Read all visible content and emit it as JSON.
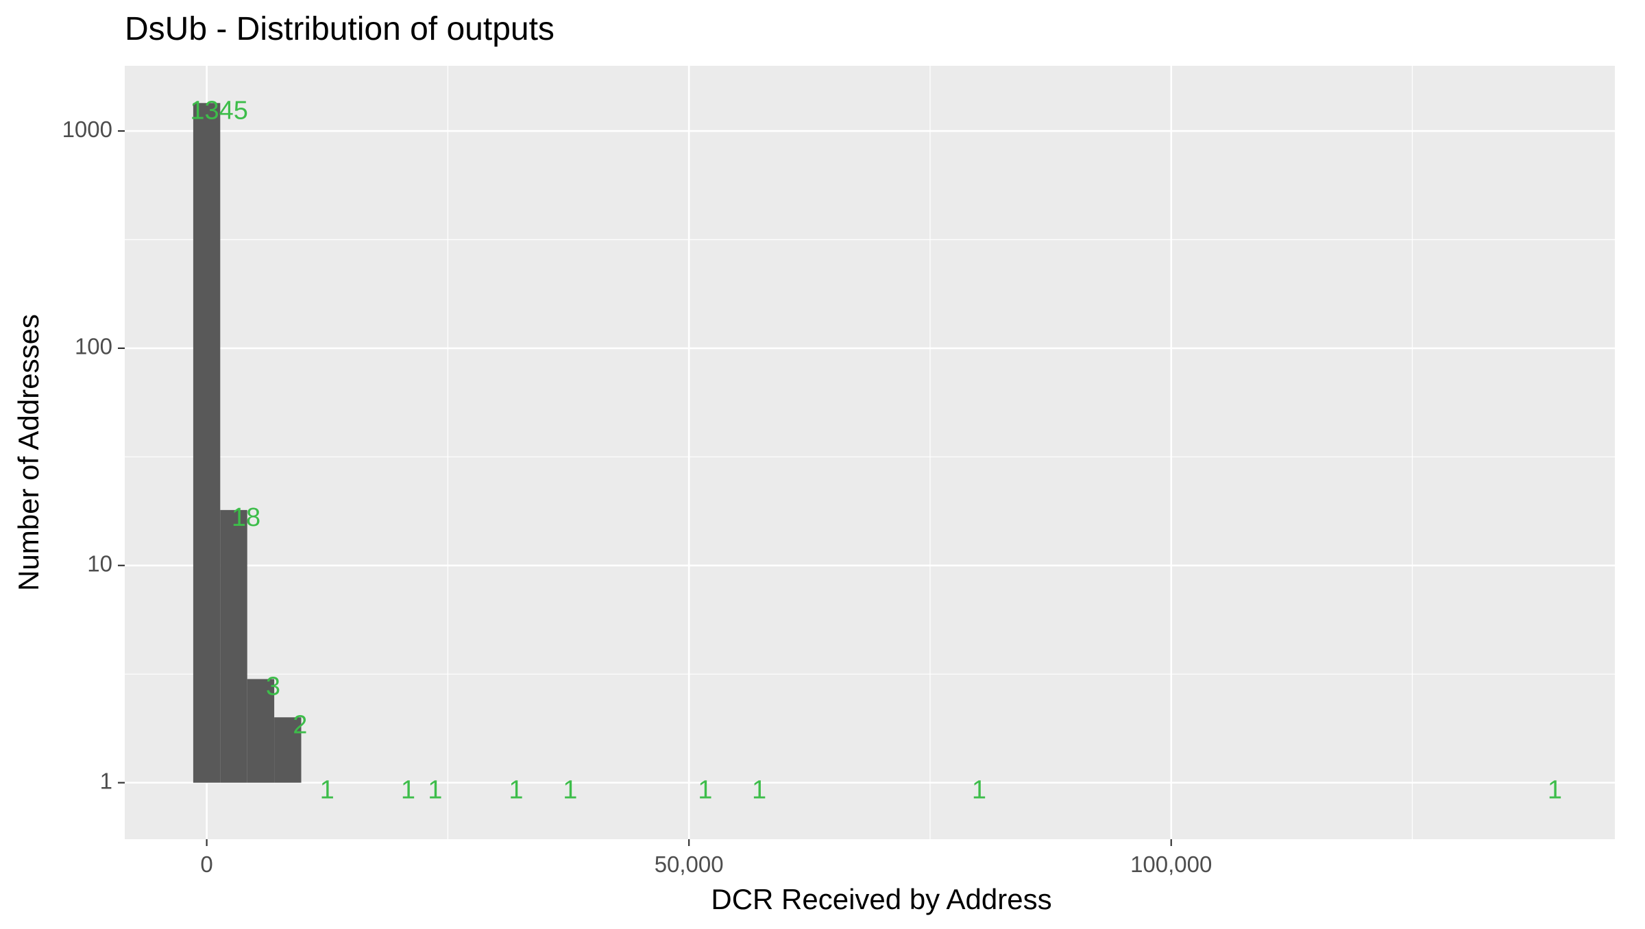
{
  "chart_data": {
    "type": "bar",
    "title": "DsUb - Distribution of outputs",
    "xlabel": "DCR Received by Address",
    "ylabel": "Number of Addresses",
    "y_scale": "log10",
    "x_range": [
      -8500,
      146000
    ],
    "y_range_log10": [
      -0.26,
      3.3
    ],
    "bin_width": 2800,
    "x_ticks": [
      {
        "value": 0,
        "label": "0"
      },
      {
        "value": 50000,
        "label": "50,000"
      },
      {
        "value": 100000,
        "label": "100,000"
      }
    ],
    "x_minor_ticks": [
      25000,
      75000,
      125000
    ],
    "y_ticks": [
      {
        "value": 1,
        "label": "1"
      },
      {
        "value": 10,
        "label": "10"
      },
      {
        "value": 100,
        "label": "100"
      },
      {
        "value": 1000,
        "label": "1000"
      }
    ],
    "y_minor_ticks": [
      3.1623,
      31.623,
      316.23
    ],
    "grid": true,
    "bars": [
      {
        "x": 0,
        "count": 1345,
        "label": "1345"
      },
      {
        "x": 2800,
        "count": 18,
        "label": "18"
      },
      {
        "x": 5600,
        "count": 3,
        "label": "3"
      },
      {
        "x": 8400,
        "count": 2,
        "label": "2"
      },
      {
        "x": 11200,
        "count": 1,
        "label": "1"
      },
      {
        "x": 19600,
        "count": 1,
        "label": "1"
      },
      {
        "x": 22400,
        "count": 1,
        "label": "1"
      },
      {
        "x": 30800,
        "count": 1,
        "label": "1"
      },
      {
        "x": 36400,
        "count": 1,
        "label": "1"
      },
      {
        "x": 50400,
        "count": 1,
        "label": "1"
      },
      {
        "x": 56000,
        "count": 1,
        "label": "1"
      },
      {
        "x": 78800,
        "count": 1,
        "label": "1"
      },
      {
        "x": 138500,
        "count": 1,
        "label": "1"
      }
    ],
    "colors": {
      "panel_background": "#ebebeb",
      "grid_major": "#ffffff",
      "bar_fill": "#595959",
      "label": "#3dbd4a",
      "axis_text": "#4d4d4d",
      "title_text": "#000000"
    }
  }
}
